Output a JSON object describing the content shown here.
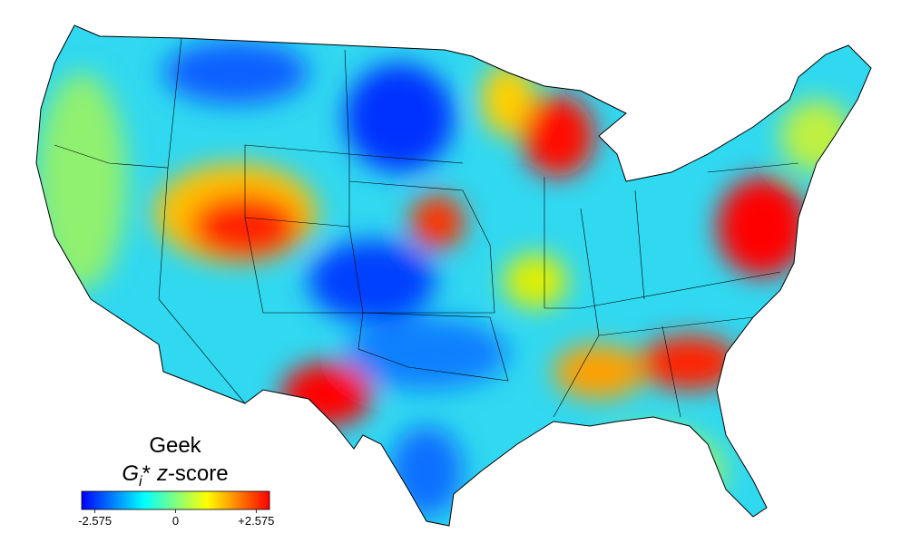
{
  "legend": {
    "title": "Geek",
    "subtitle_parts": [
      "G",
      "i",
      "*",
      "z",
      "-score"
    ],
    "colorbar": {
      "lim": [
        -3,
        3
      ],
      "colors": [
        "#0000ff",
        "#0080ff",
        "#00ffff",
        "#80ff80",
        "#ffff00",
        "#ff8000",
        "#ff0000"
      ],
      "ticks": [
        -2.575,
        0,
        {
          "value": 2.575,
          "label": "+2.575"
        }
      ]
    }
  }
}
